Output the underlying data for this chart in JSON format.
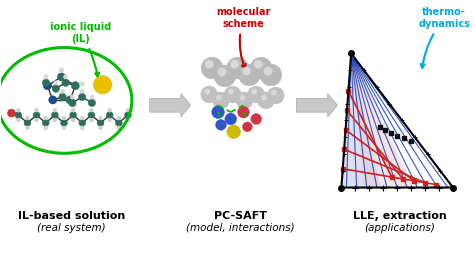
{
  "bg_color": "#ffffff",
  "label1_main": "IL-based solution",
  "label1_sub": "(real system)",
  "label2_main": "PC-SAFT",
  "label2_sub": "(model, interactions)",
  "label3_main": "LLE, extraction",
  "label3_sub": "(applications)",
  "annot1": "ionic liquid\n(IL)",
  "annot2": "molecular\nscheme",
  "annot3": "thermo-\ndynamics",
  "green_color": "#00bb00",
  "red_color": "#cc0000",
  "blue_color": "#00aadd",
  "dark_teal": "#2e6e5e",
  "arrow_gray": "#c8c8c8",
  "mol_gray": "#909090",
  "mol_white": "#e8e8e8",
  "mol_blue": "#3355cc",
  "mol_red": "#cc3333",
  "mol_yellow": "#ddcc00",
  "ternary_blue": "#2244bb",
  "ternary_red": "#cc2222",
  "ternary_fill_blue": "#c8cce8",
  "ternary_fill_red": "#e8c8cc",
  "bond_color": "#333333"
}
